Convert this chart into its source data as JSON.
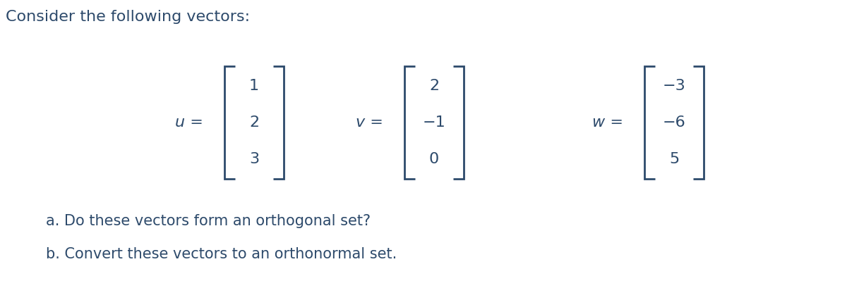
{
  "title_text": "Consider the following vectors:",
  "title_color": "#2d4a6b",
  "title_fontsize": 16,
  "u_label": "u =",
  "v_label": "v =",
  "w_label": "w =",
  "u_values": [
    "1",
    "2",
    "3"
  ],
  "v_values": [
    "2",
    "−1",
    "0"
  ],
  "w_values": [
    "−3",
    "−6",
    "5"
  ],
  "question_a": "a. Do these vectors form an orthogonal set?",
  "question_b": "b. Convert these vectors to an orthonormal set.",
  "question_fontsize": 15,
  "question_color": "#2d4a6b",
  "label_fontsize": 16,
  "value_fontsize": 16,
  "bracket_color": "#2d4a6b",
  "text_color": "#2d4a6b",
  "background_color": "#ffffff",
  "fig_width": 12.0,
  "fig_height": 4.09,
  "dpi": 100
}
